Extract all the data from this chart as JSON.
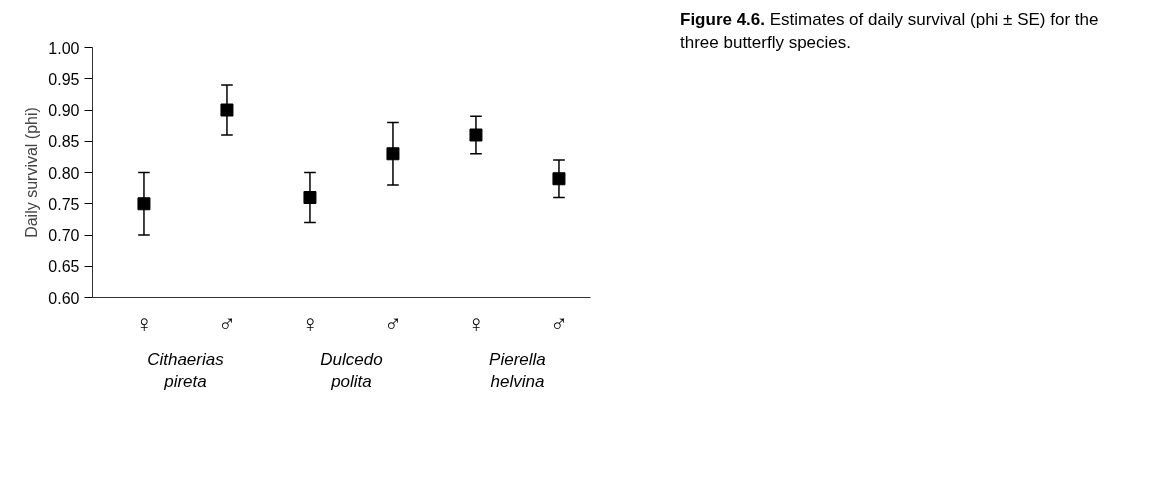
{
  "chart_data": {
    "type": "scatter",
    "title": "Figure 4.6.",
    "subtitle": "Estimates of daily survival (phi ± SE) for the three butterfly species.",
    "ylabel": "Daily survival (phi)",
    "categories": [
      "♀",
      "♂",
      "♀",
      "♂",
      "♀",
      "♂"
    ],
    "values": [
      0.75,
      0.9,
      0.76,
      0.83,
      0.86,
      0.79
    ],
    "errors": [
      0.05,
      0.04,
      0.04,
      0.05,
      0.03,
      0.03
    ],
    "color": "#000000",
    "marker": "square",
    "grid": false,
    "ylim": [
      0.6,
      1.0
    ],
    "yticks": [
      {
        "value": 0.6,
        "label": "0.60"
      },
      {
        "value": 0.65,
        "label": "0.65"
      },
      {
        "value": 0.7,
        "label": "0.70"
      },
      {
        "value": 0.75,
        "label": "0.75"
      },
      {
        "value": 0.8,
        "label": "0.80"
      },
      {
        "value": 0.85,
        "label": "0.85"
      },
      {
        "value": 0.9,
        "label": "0.90"
      },
      {
        "value": 0.95,
        "label": "0.95"
      },
      {
        "value": 1.0,
        "label": "1.00"
      }
    ],
    "annotations": [
      "Cithaerias\npireta",
      "Dulcedo\npolita",
      "Pierella\nhelvina"
    ]
  }
}
